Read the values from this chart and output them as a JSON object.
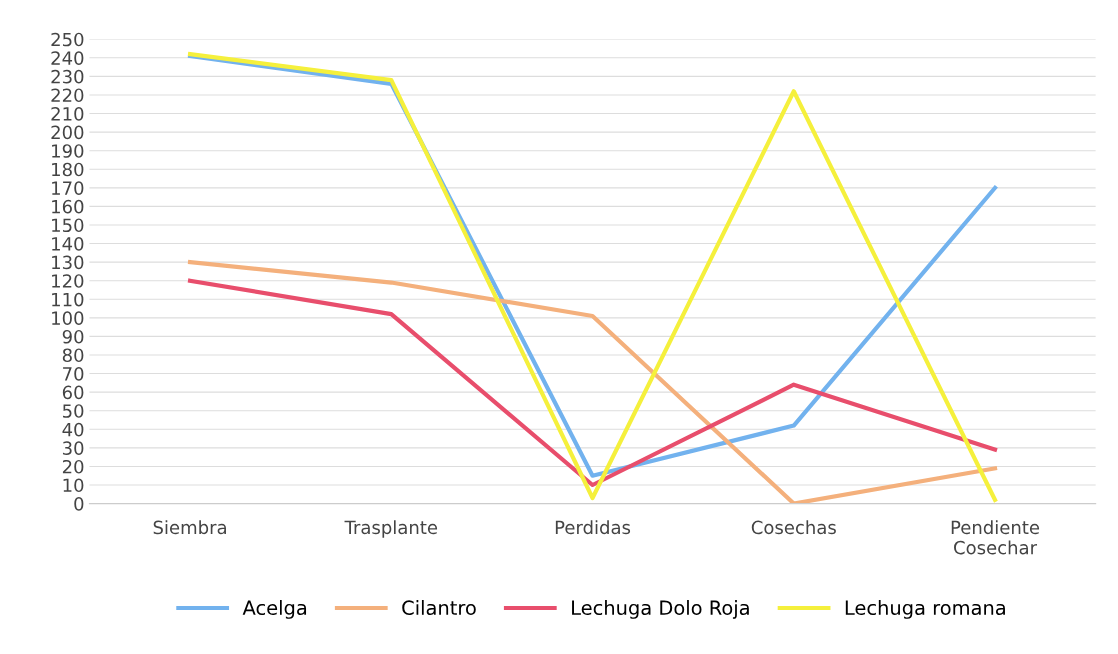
{
  "chart_data": {
    "type": "line",
    "categories": [
      "Siembra",
      "Trasplante",
      "Perdidas",
      "Cosechas",
      "Pendiente\nCosechar"
    ],
    "series": [
      {
        "name": "Acelga",
        "color": "#72b2ee",
        "values": [
          241,
          226,
          15,
          42,
          170
        ]
      },
      {
        "name": "Cilantro",
        "color": "#f4b07c",
        "values": [
          130,
          119,
          101,
          0,
          19
        ]
      },
      {
        "name": "Lechuga Dolo Roja",
        "color": "#e84e6c",
        "values": [
          120,
          102,
          10,
          64,
          29
        ]
      },
      {
        "name": "Lechuga romana",
        "color": "#f5f03c",
        "values": [
          242,
          228,
          3,
          222,
          2
        ]
      }
    ],
    "ylim": [
      0,
      250
    ],
    "yticks": [
      0,
      10,
      20,
      30,
      40,
      50,
      60,
      70,
      80,
      90,
      100,
      110,
      120,
      130,
      140,
      150,
      160,
      170,
      180,
      190,
      200,
      210,
      220,
      230,
      240,
      250
    ],
    "grid": "y",
    "legend": "bottom",
    "marker": "none",
    "line_style": "solid"
  }
}
